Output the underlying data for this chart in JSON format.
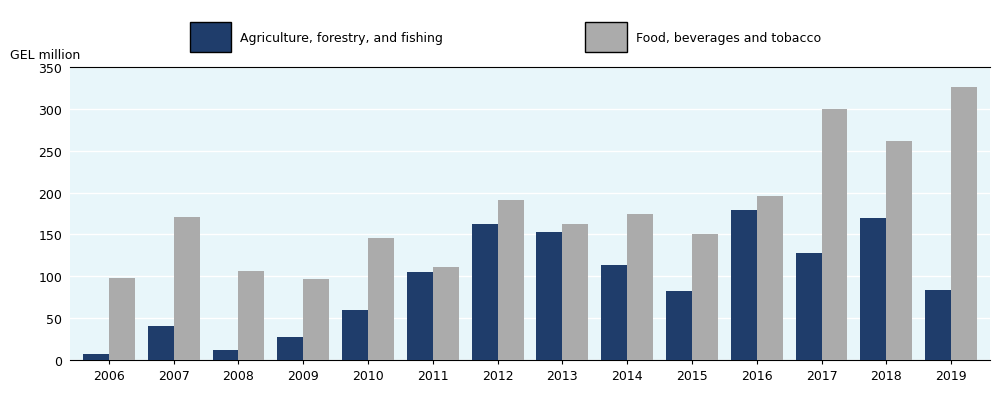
{
  "years": [
    2006,
    2007,
    2008,
    2009,
    2010,
    2011,
    2012,
    2013,
    2014,
    2015,
    2016,
    2017,
    2018,
    2019
  ],
  "agriculture": [
    7,
    40,
    12,
    27,
    60,
    105,
    163,
    153,
    113,
    82,
    179,
    128,
    170,
    84
  ],
  "food": [
    98,
    171,
    106,
    97,
    146,
    111,
    191,
    163,
    174,
    151,
    196,
    300,
    262,
    326
  ],
  "agri_color": "#1F3D6B",
  "food_color": "#ABABAB",
  "plot_bg": "#E8F6FA",
  "legend_bg": "#CCCCCC",
  "fig_bg": "#FFFFFF",
  "ylabel": "GEL million",
  "ylim": [
    0,
    350
  ],
  "yticks": [
    0,
    50,
    100,
    150,
    200,
    250,
    300,
    350
  ],
  "legend_label_agri": "Agriculture, forestry, and fishing",
  "legend_label_food": "Food, beverages and tobacco",
  "bar_width": 0.4,
  "grid_color": "#FFFFFF",
  "spine_color": "#000000"
}
